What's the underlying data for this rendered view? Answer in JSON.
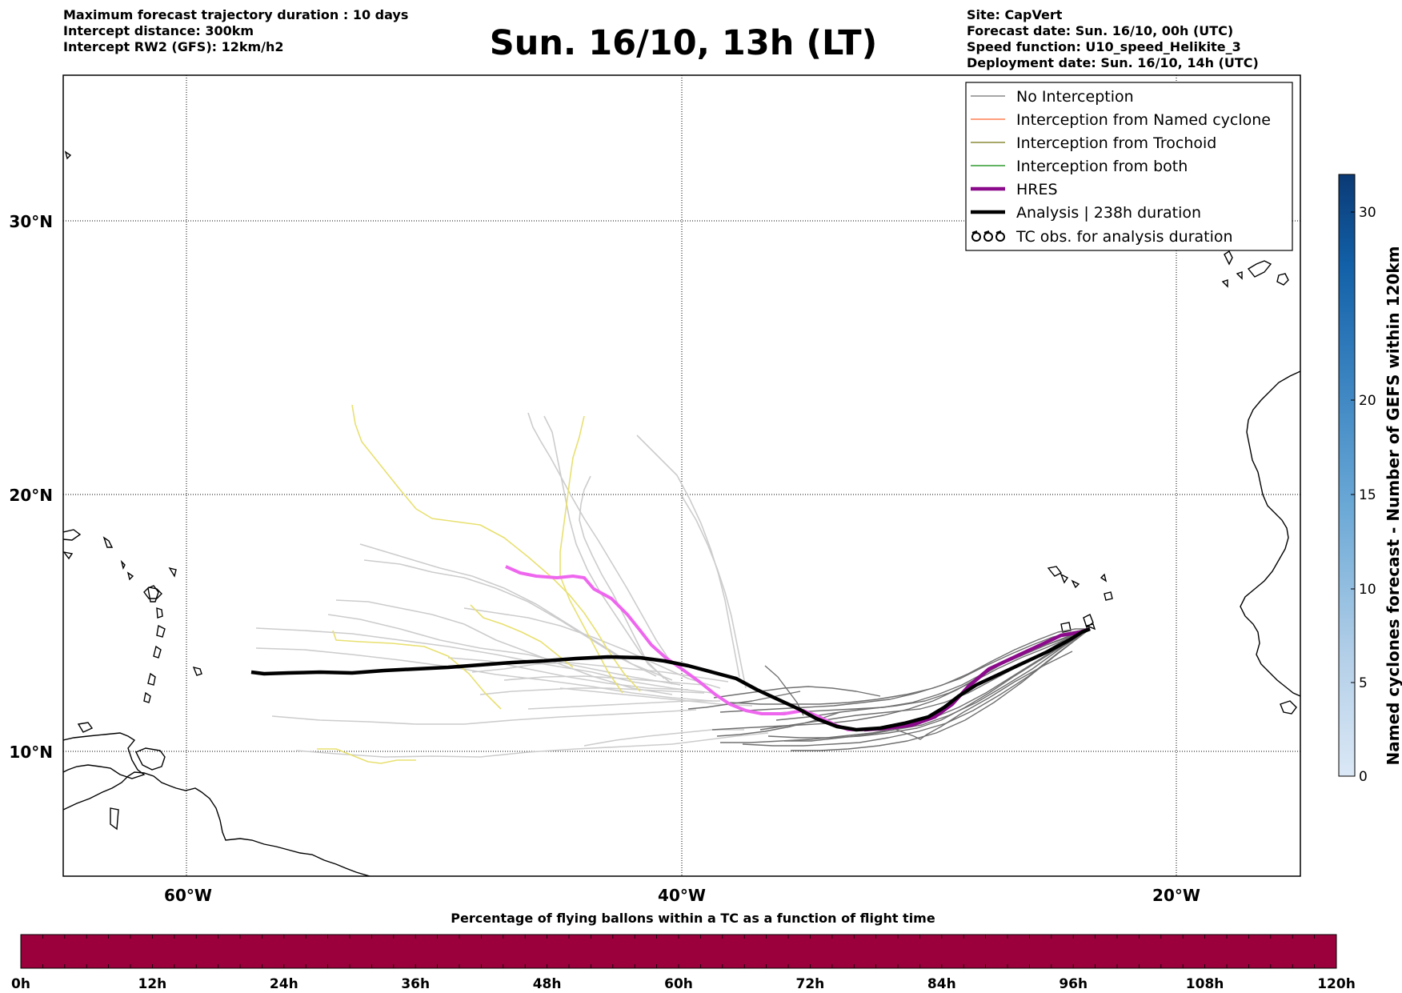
{
  "header": {
    "left_lines": [
      "Maximum forecast trajectory duration : 10 days",
      "Intercept distance: 300km",
      "Intercept RW2 (GFS):  12km/h2"
    ],
    "title": "Sun. 16/10, 13h (LT)",
    "right_lines": [
      "Site: CapVert",
      "Forecast date: Sun. 16/10, 00h (UTC)",
      "Speed function: U10_speed_Helikite_3",
      "Deployment date: Sun. 16/10, 14h (UTC)"
    ]
  },
  "map": {
    "lon_ticks": [
      "60°W",
      "40°W",
      "20°W"
    ],
    "lat_ticks": [
      "30°N",
      "20°N",
      "10°N"
    ],
    "colors": {
      "no_interception": "#cccccc",
      "no_interception_dark": "#707070",
      "trochoid": "#e8e070",
      "hres": "#ee66ee",
      "hres_dark": "#8b0a8b",
      "analysis": "#000000"
    }
  },
  "legend": {
    "items": [
      {
        "label": "No Interception",
        "color": "#888888",
        "symbol": "line"
      },
      {
        "label": "Interception from Named cyclone",
        "color": "#ff7f50",
        "symbol": "line"
      },
      {
        "label": "Interception from Trochoid",
        "color": "#8b8b3a",
        "symbol": "line"
      },
      {
        "label": "Interception from both",
        "color": "#2e9a2e",
        "symbol": "line"
      },
      {
        "label": "HRES",
        "color": "#8b0a8b",
        "symbol": "thick"
      },
      {
        "label": "Analysis | 238h duration",
        "color": "#000000",
        "symbol": "thick"
      },
      {
        "label": "TC obs. for analysis duration",
        "color": "#000000",
        "symbol": "tc"
      }
    ]
  },
  "colorbar_right": {
    "label": "Named cyclones forecast - Number of GEFS within 120km",
    "ticks": [
      "0",
      "5",
      "10",
      "15",
      "20",
      "30"
    ]
  },
  "colorbar_bottom": {
    "label": "Percentage of flying ballons within a TC as a function of flight time",
    "ticks": [
      "0h",
      "12h",
      "24h",
      "36h",
      "48h",
      "60h",
      "72h",
      "84h",
      "96h",
      "108h",
      "120h"
    ],
    "color": "#9c003c"
  }
}
